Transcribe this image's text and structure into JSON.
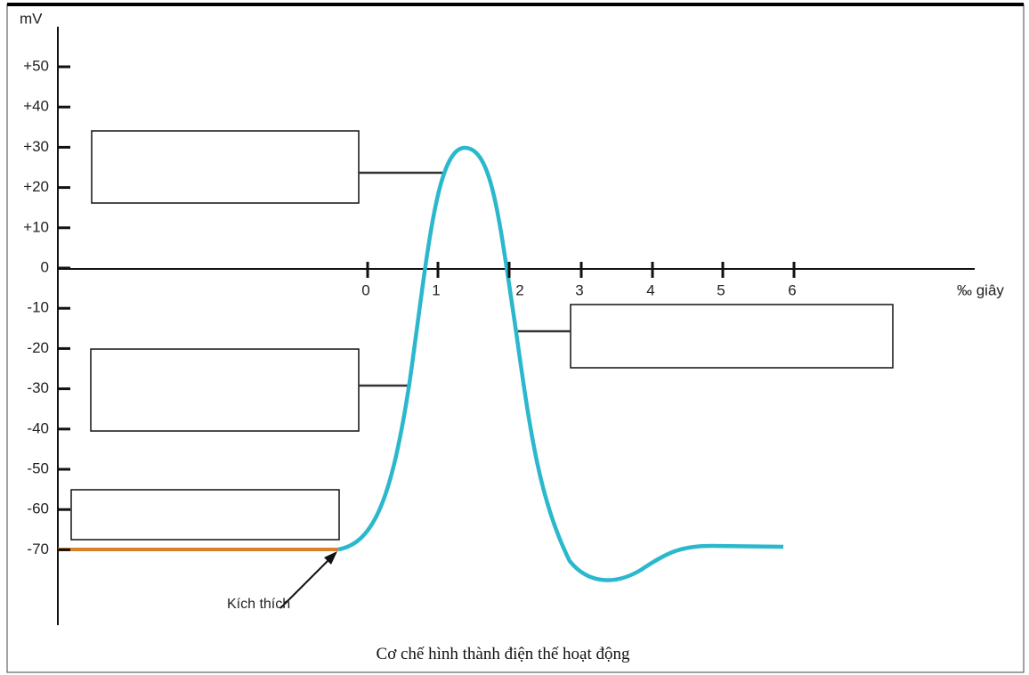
{
  "y_axis": {
    "unit": "mV",
    "ticks": [
      "+50",
      "+40",
      "+30",
      "+20",
      "+10",
      "0",
      "-10",
      "-20",
      "-30",
      "-40",
      "-50",
      "-60",
      "-70"
    ]
  },
  "x_axis": {
    "unit": "‰ giây",
    "ticks": [
      "0",
      "1",
      "2",
      "3",
      "4",
      "5",
      "6"
    ]
  },
  "annotation": "Kích thích",
  "caption": "Cơ chế hình thành điện thế hoạt động"
}
